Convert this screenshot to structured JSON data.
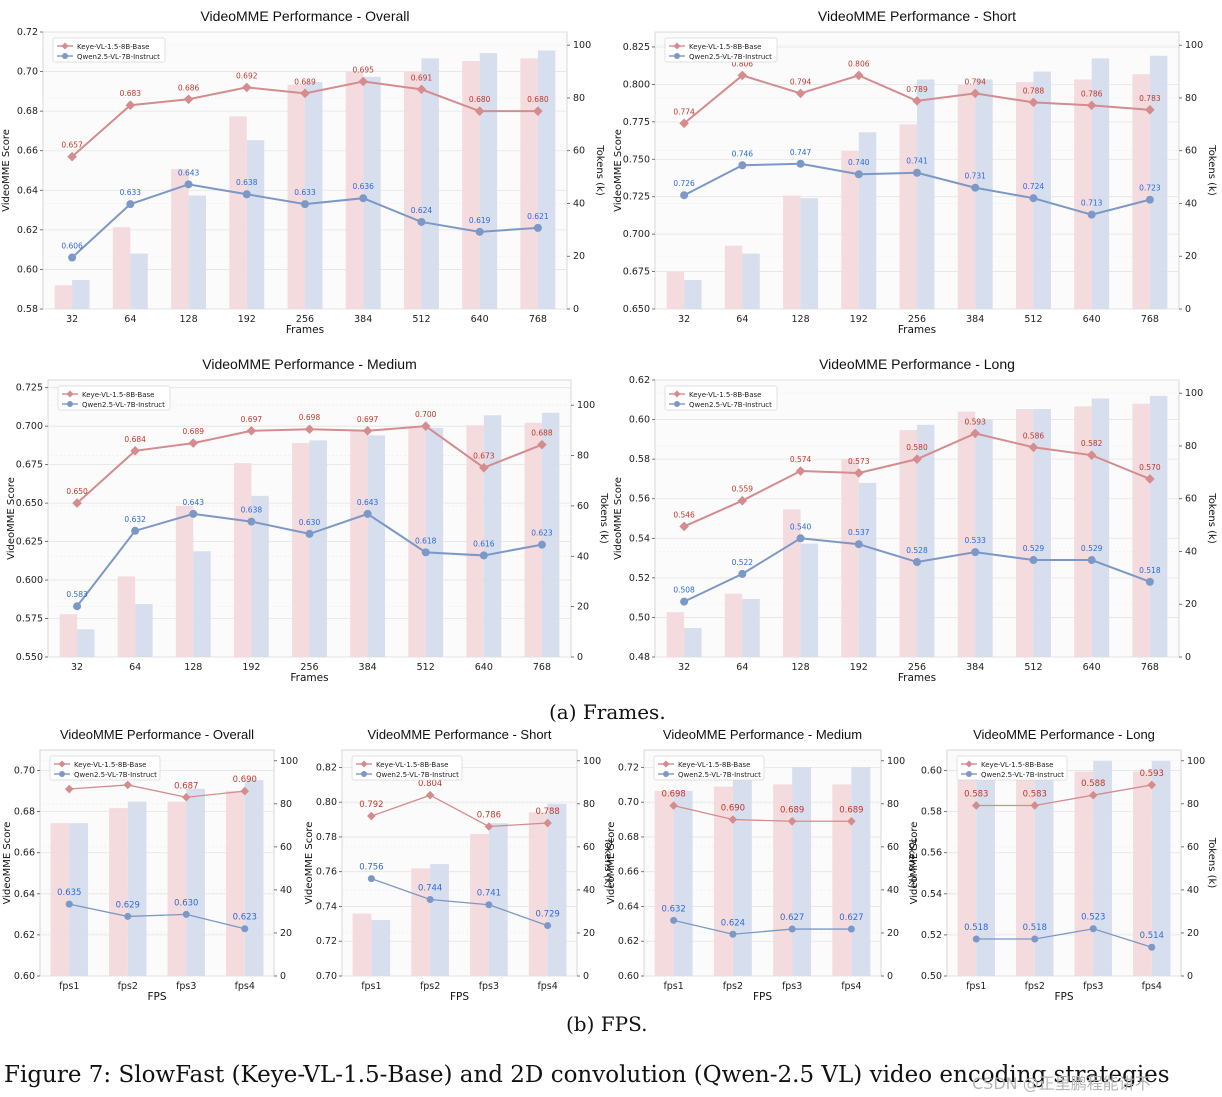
{
  "colors": {
    "keye": "#d48c8e",
    "qwen": "#7c98c6",
    "keye_bar": "#f3d9dc",
    "qwen_bar": "#d5dcec",
    "keye_label": "#c0392b",
    "qwen_label": "#2e6bd6"
  },
  "panel_labels": {
    "a": "(a) Frames.",
    "b": "(b) FPS."
  },
  "caption": "Figure 7: SlowFast (Keye-VL-1.5-Base) and 2D convolution (Qwen-2.5 VL) video encoding strategies",
  "watermark": "CSDN @正里鹏程能讲不",
  "chart_data": [
    {
      "type": "bar+line",
      "title": "VideoMME Performance - Overall",
      "xlabel": "Frames",
      "ylabel": "VideoMME Score",
      "y2label": "Tokens (k)",
      "categories": [
        "32",
        "64",
        "128",
        "192",
        "256",
        "384",
        "512",
        "640",
        "768"
      ],
      "ylim": [
        0.58,
        0.72
      ],
      "yticks": [
        0.58,
        0.6,
        0.62,
        0.64,
        0.66,
        0.68,
        0.7,
        0.72
      ],
      "ydec": 2,
      "y2lim": [
        0,
        105
      ],
      "y2ticks": [
        0,
        20,
        40,
        60,
        80,
        100
      ],
      "legend": "top-left",
      "series": [
        {
          "name": "Keye-VL-1.5-8B-Base",
          "values": [
            0.657,
            0.683,
            0.686,
            0.692,
            0.689,
            0.695,
            0.691,
            0.68,
            0.68
          ]
        },
        {
          "name": "Qwen2.5-VL-7B-Instruct",
          "values": [
            0.606,
            0.633,
            0.643,
            0.638,
            0.633,
            0.636,
            0.624,
            0.619,
            0.621
          ]
        }
      ],
      "bars": [
        {
          "series": "Keye-VL-1.5-8B-Base",
          "values": [
            9,
            31,
            53,
            73,
            85,
            90,
            90,
            94,
            95
          ]
        },
        {
          "series": "Qwen2.5-VL-7B-Instruct",
          "values": [
            11,
            21,
            43,
            64,
            86,
            88,
            95,
            97,
            98
          ]
        }
      ]
    },
    {
      "type": "bar+line",
      "title": "VideoMME Performance - Short",
      "xlabel": "Frames",
      "ylabel": "VideoMME Score",
      "y2label": "Tokens (k)",
      "categories": [
        "32",
        "64",
        "128",
        "192",
        "256",
        "384",
        "512",
        "640",
        "768"
      ],
      "ylim": [
        0.65,
        0.835
      ],
      "yticks": [
        0.65,
        0.675,
        0.7,
        0.725,
        0.75,
        0.775,
        0.8,
        0.825
      ],
      "ydec": 3,
      "y2lim": [
        0,
        105
      ],
      "y2ticks": [
        0,
        20,
        40,
        60,
        80,
        100
      ],
      "legend": "top-left",
      "series": [
        {
          "name": "Keye-VL-1.5-8B-Base",
          "values": [
            0.774,
            0.806,
            0.794,
            0.806,
            0.789,
            0.794,
            0.788,
            0.786,
            0.783
          ]
        },
        {
          "name": "Qwen2.5-VL-7B-Instruct",
          "values": [
            0.726,
            0.746,
            0.747,
            0.74,
            0.741,
            0.731,
            0.724,
            0.713,
            0.723
          ]
        }
      ],
      "bars": [
        {
          "series": "Keye-VL-1.5-8B-Base",
          "values": [
            14,
            24,
            43,
            60,
            70,
            85,
            86,
            87,
            89
          ]
        },
        {
          "series": "Qwen2.5-VL-7B-Instruct",
          "values": [
            11,
            21,
            42,
            67,
            87,
            87,
            90,
            95,
            96
          ]
        }
      ]
    },
    {
      "type": "bar+line",
      "title": "VideoMME Performance - Medium",
      "xlabel": "Frames",
      "ylabel": "VideoMME Score",
      "y2label": "Tokens (k)",
      "categories": [
        "32",
        "64",
        "128",
        "192",
        "256",
        "384",
        "512",
        "640",
        "768"
      ],
      "ylim": [
        0.55,
        0.73
      ],
      "yticks": [
        0.55,
        0.575,
        0.6,
        0.625,
        0.65,
        0.675,
        0.7,
        0.725
      ],
      "ydec": 3,
      "y2lim": [
        0,
        110
      ],
      "y2ticks": [
        0,
        20,
        40,
        60,
        80,
        100
      ],
      "legend": "top-left",
      "series": [
        {
          "name": "Keye-VL-1.5-8B-Base",
          "values": [
            0.65,
            0.684,
            0.689,
            0.697,
            0.698,
            0.697,
            0.7,
            0.673,
            0.688
          ]
        },
        {
          "name": "Qwen2.5-VL-7B-Instruct",
          "values": [
            0.583,
            0.632,
            0.643,
            0.638,
            0.63,
            0.643,
            0.618,
            0.616,
            0.623
          ]
        }
      ],
      "bars": [
        {
          "series": "Keye-VL-1.5-8B-Base",
          "values": [
            17,
            32,
            60,
            77,
            85,
            90,
            91,
            92,
            93
          ]
        },
        {
          "series": "Qwen2.5-VL-7B-Instruct",
          "values": [
            11,
            21,
            42,
            64,
            86,
            88,
            91,
            96,
            97
          ]
        }
      ]
    },
    {
      "type": "bar+line",
      "title": "VideoMME Performance - Long",
      "xlabel": "Frames",
      "ylabel": "VideoMME Score",
      "y2label": "Tokens (k)",
      "categories": [
        "32",
        "64",
        "128",
        "192",
        "256",
        "384",
        "512",
        "640",
        "768"
      ],
      "ylim": [
        0.48,
        0.62
      ],
      "yticks": [
        0.48,
        0.5,
        0.52,
        0.54,
        0.56,
        0.58,
        0.6,
        0.62
      ],
      "ydec": 2,
      "y2lim": [
        0,
        105
      ],
      "y2ticks": [
        0,
        20,
        40,
        60,
        80,
        100
      ],
      "legend": "top-left",
      "series": [
        {
          "name": "Keye-VL-1.5-8B-Base",
          "values": [
            0.546,
            0.559,
            0.574,
            0.573,
            0.58,
            0.593,
            0.586,
            0.582,
            0.57
          ]
        },
        {
          "name": "Qwen2.5-VL-7B-Instruct",
          "values": [
            0.508,
            0.522,
            0.54,
            0.537,
            0.528,
            0.533,
            0.529,
            0.529,
            0.518
          ]
        }
      ],
      "bars": [
        {
          "series": "Keye-VL-1.5-8B-Base",
          "values": [
            17,
            24,
            56,
            75,
            86,
            93,
            94,
            95,
            96
          ]
        },
        {
          "series": "Qwen2.5-VL-7B-Instruct",
          "values": [
            11,
            22,
            43,
            66,
            88,
            90,
            94,
            98,
            99
          ]
        }
      ]
    },
    {
      "type": "bar+line",
      "title": "VideoMME Performance - Overall",
      "xlabel": "FPS",
      "ylabel": "VideoMME Score",
      "y2label": "",
      "categories": [
        "fps1",
        "fps2",
        "fps3",
        "fps4"
      ],
      "ylim": [
        0.6,
        0.71
      ],
      "yticks": [
        0.6,
        0.62,
        0.64,
        0.66,
        0.68,
        0.7
      ],
      "ydec": 2,
      "y2lim": [
        0,
        105
      ],
      "y2ticks": [
        0,
        20,
        40,
        60,
        80,
        100
      ],
      "legend": "top-left",
      "series": [
        {
          "name": "Keye-VL-1.5-8B-Base",
          "values": [
            0.691,
            0.693,
            0.687,
            0.69
          ]
        },
        {
          "name": "Qwen2.5-VL-7B-Instruct",
          "values": [
            0.635,
            0.629,
            0.63,
            0.623
          ]
        }
      ],
      "bars": [
        {
          "series": "Keye-VL-1.5-8B-Base",
          "values": [
            71,
            78,
            81,
            86
          ]
        },
        {
          "series": "Qwen2.5-VL-7B-Instruct",
          "values": [
            71,
            81,
            87,
            91
          ]
        }
      ]
    },
    {
      "type": "bar+line",
      "title": "VideoMME Performance - Short",
      "xlabel": "FPS",
      "ylabel": "VideoMME Score",
      "y2label": "Tokens (k)",
      "categories": [
        "fps1",
        "fps2",
        "fps3",
        "fps4"
      ],
      "ylim": [
        0.7,
        0.83
      ],
      "yticks": [
        0.7,
        0.72,
        0.74,
        0.76,
        0.78,
        0.8,
        0.82
      ],
      "ydec": 2,
      "y2lim": [
        0,
        105
      ],
      "y2ticks": [
        0,
        20,
        40,
        60,
        80,
        100
      ],
      "legend": "top-left",
      "series": [
        {
          "name": "Keye-VL-1.5-8B-Base",
          "values": [
            0.792,
            0.804,
            0.786,
            0.788
          ]
        },
        {
          "name": "Qwen2.5-VL-7B-Instruct",
          "values": [
            0.756,
            0.744,
            0.741,
            0.729
          ]
        }
      ],
      "bars": [
        {
          "series": "Keye-VL-1.5-8B-Base",
          "values": [
            29,
            50,
            66,
            76
          ]
        },
        {
          "series": "Qwen2.5-VL-7B-Instruct",
          "values": [
            26,
            52,
            71,
            80
          ]
        }
      ]
    },
    {
      "type": "bar+line",
      "title": "VideoMME Performance - Medium",
      "xlabel": "FPS",
      "ylabel": "VideoMME Score",
      "y2label": "Tokens (k)",
      "categories": [
        "fps1",
        "fps2",
        "fps3",
        "fps4"
      ],
      "ylim": [
        0.6,
        0.73
      ],
      "yticks": [
        0.6,
        0.62,
        0.64,
        0.66,
        0.68,
        0.7,
        0.72
      ],
      "ydec": 2,
      "y2lim": [
        0,
        105
      ],
      "y2ticks": [
        0,
        20,
        40,
        60,
        80,
        100
      ],
      "legend": "top-left",
      "series": [
        {
          "name": "Keye-VL-1.5-8B-Base",
          "values": [
            0.698,
            0.69,
            0.689,
            0.689
          ]
        },
        {
          "name": "Qwen2.5-VL-7B-Instruct",
          "values": [
            0.632,
            0.624,
            0.627,
            0.627
          ]
        }
      ],
      "bars": [
        {
          "series": "Keye-VL-1.5-8B-Base",
          "values": [
            86,
            88,
            89,
            89
          ]
        },
        {
          "series": "Qwen2.5-VL-7B-Instruct",
          "values": [
            86,
            92,
            97,
            97
          ]
        }
      ]
    },
    {
      "type": "bar+line",
      "title": "VideoMME Performance - Long",
      "xlabel": "FPS",
      "ylabel": "VideoMME Score",
      "y2label": "Tokens (k)",
      "categories": [
        "fps1",
        "fps2",
        "fps3",
        "fps4"
      ],
      "ylim": [
        0.5,
        0.61
      ],
      "yticks": [
        0.5,
        0.52,
        0.54,
        0.56,
        0.58,
        0.6
      ],
      "ydec": 2,
      "y2lim": [
        0,
        105
      ],
      "y2ticks": [
        0,
        20,
        40,
        60,
        80,
        100
      ],
      "legend": "top-left",
      "series": [
        {
          "name": "Keye-VL-1.5-8B-Base",
          "values": [
            0.583,
            0.583,
            0.588,
            0.593
          ]
        },
        {
          "name": "Qwen2.5-VL-7B-Instruct",
          "values": [
            0.518,
            0.518,
            0.523,
            0.514
          ]
        }
      ],
      "bars": [
        {
          "series": "Keye-VL-1.5-8B-Base",
          "values": [
            94,
            94,
            95,
            95
          ]
        },
        {
          "series": "Qwen2.5-VL-7B-Instruct",
          "values": [
            100,
            100,
            100,
            100
          ]
        }
      ]
    }
  ]
}
